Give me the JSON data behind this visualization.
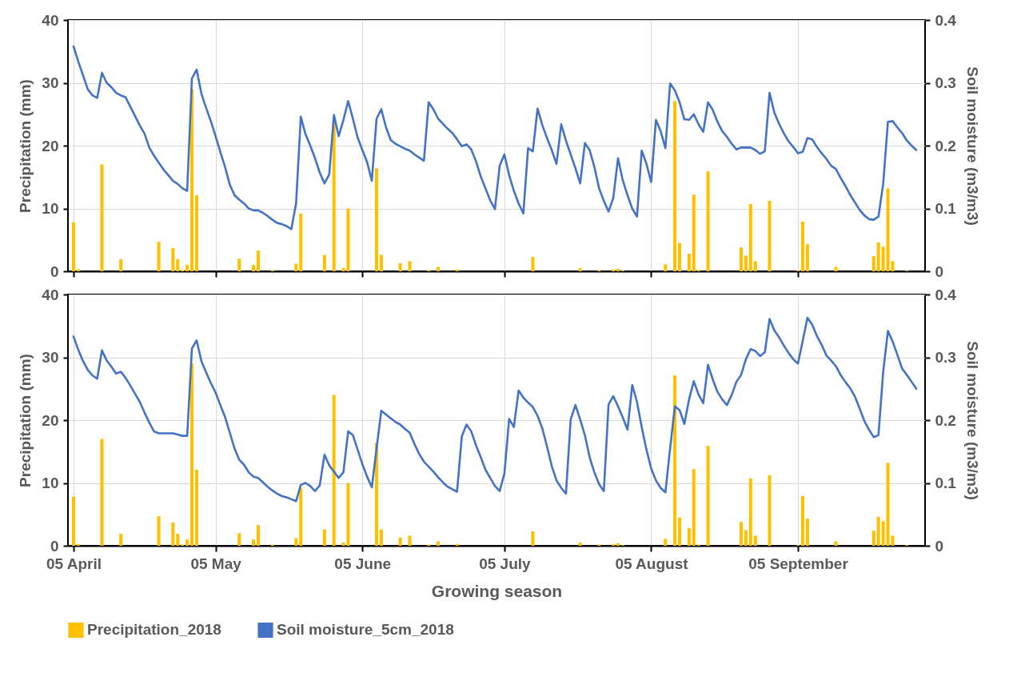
{
  "chart_data": [
    {
      "type": "bar",
      "ylabel": "Precipitation (mm)",
      "y2label": "Soil moisture (m3/m3)",
      "x": [
        "2018-04-05",
        "2018-04-06",
        "2018-04-07",
        "2018-04-08",
        "2018-04-09",
        "2018-04-10",
        "2018-04-11",
        "2018-04-12",
        "2018-04-13",
        "2018-04-14",
        "2018-04-15",
        "2018-04-16",
        "2018-04-17",
        "2018-04-18",
        "2018-04-19",
        "2018-04-20",
        "2018-04-21",
        "2018-04-22",
        "2018-04-23",
        "2018-04-24",
        "2018-04-25",
        "2018-04-26",
        "2018-04-27",
        "2018-04-28",
        "2018-04-29",
        "2018-04-30",
        "2018-05-01",
        "2018-05-02",
        "2018-05-03",
        "2018-05-04",
        "2018-05-05",
        "2018-05-06",
        "2018-05-07",
        "2018-05-08",
        "2018-05-09",
        "2018-05-10",
        "2018-05-11",
        "2018-05-12",
        "2018-05-13",
        "2018-05-14",
        "2018-05-15",
        "2018-05-16",
        "2018-05-17",
        "2018-05-18",
        "2018-05-19",
        "2018-05-20",
        "2018-05-21",
        "2018-05-22",
        "2018-05-23",
        "2018-05-24",
        "2018-05-25",
        "2018-05-26",
        "2018-05-27",
        "2018-05-28",
        "2018-05-29",
        "2018-05-30",
        "2018-05-31",
        "2018-06-01",
        "2018-06-02",
        "2018-06-03",
        "2018-06-04",
        "2018-06-05",
        "2018-06-06",
        "2018-06-07",
        "2018-06-08",
        "2018-06-09",
        "2018-06-10",
        "2018-06-11",
        "2018-06-12",
        "2018-06-13",
        "2018-06-14",
        "2018-06-15",
        "2018-06-16",
        "2018-06-17",
        "2018-06-18",
        "2018-06-19",
        "2018-06-20",
        "2018-06-21",
        "2018-06-22",
        "2018-06-23",
        "2018-06-24",
        "2018-06-25",
        "2018-06-26",
        "2018-06-27",
        "2018-06-28",
        "2018-06-29",
        "2018-06-30",
        "2018-07-01",
        "2018-07-02",
        "2018-07-03",
        "2018-07-04",
        "2018-07-05",
        "2018-07-06",
        "2018-07-07",
        "2018-07-08",
        "2018-07-09",
        "2018-07-10",
        "2018-07-11",
        "2018-07-12",
        "2018-07-13",
        "2018-07-14",
        "2018-07-15",
        "2018-07-16",
        "2018-07-17",
        "2018-07-18",
        "2018-07-19",
        "2018-07-20",
        "2018-07-21",
        "2018-07-22",
        "2018-07-23",
        "2018-07-24",
        "2018-07-25",
        "2018-07-26",
        "2018-07-27",
        "2018-07-28",
        "2018-07-29",
        "2018-07-30",
        "2018-07-31",
        "2018-08-01",
        "2018-08-02",
        "2018-08-03",
        "2018-08-04",
        "2018-08-05",
        "2018-08-06",
        "2018-08-07",
        "2018-08-08",
        "2018-08-09",
        "2018-08-10",
        "2018-08-11",
        "2018-08-12",
        "2018-08-13",
        "2018-08-14",
        "2018-08-15",
        "2018-08-16",
        "2018-08-17",
        "2018-08-18",
        "2018-08-19",
        "2018-08-20",
        "2018-08-21",
        "2018-08-22",
        "2018-08-23",
        "2018-08-24",
        "2018-08-25",
        "2018-08-26",
        "2018-08-27",
        "2018-08-28",
        "2018-08-29",
        "2018-08-30",
        "2018-08-31",
        "2018-09-01",
        "2018-09-02",
        "2018-09-03",
        "2018-09-04",
        "2018-09-05",
        "2018-09-06",
        "2018-09-07",
        "2018-09-08",
        "2018-09-09",
        "2018-09-10",
        "2018-09-11",
        "2018-09-12",
        "2018-09-13",
        "2018-09-14",
        "2018-09-15",
        "2018-09-16",
        "2018-09-17",
        "2018-09-18",
        "2018-09-19",
        "2018-09-20",
        "2018-09-21",
        "2018-09-22",
        "2018-09-23",
        "2018-09-24",
        "2018-09-25",
        "2018-09-26",
        "2018-09-27",
        "2018-09-28",
        "2018-09-29",
        "2018-09-30"
      ],
      "series": [
        {
          "color": "#ffc000",
          "x": [
            "2018-04-05",
            "2018-04-06",
            "2018-04-11",
            "2018-04-15",
            "2018-04-23",
            "2018-04-26",
            "2018-04-27",
            "2018-04-28",
            "2018-04-29",
            "2018-04-30",
            "2018-05-01",
            "2018-05-10",
            "2018-05-13",
            "2018-05-14",
            "2018-05-17",
            "2018-05-22",
            "2018-05-23",
            "2018-05-28",
            "2018-05-30",
            "2018-06-01",
            "2018-06-02",
            "2018-06-08",
            "2018-06-09",
            "2018-06-13",
            "2018-06-15",
            "2018-06-19",
            "2018-06-21",
            "2018-06-25",
            "2018-07-11",
            "2018-07-21",
            "2018-07-25",
            "2018-07-28",
            "2018-07-29",
            "2018-07-30",
            "2018-08-08",
            "2018-08-10",
            "2018-08-11",
            "2018-08-13",
            "2018-08-14",
            "2018-08-15",
            "2018-08-17",
            "2018-08-24",
            "2018-08-25",
            "2018-08-26",
            "2018-08-27",
            "2018-08-30",
            "2018-09-05",
            "2018-09-06",
            "2018-09-07",
            "2018-09-13",
            "2018-09-21",
            "2018-09-22",
            "2018-09-23",
            "2018-09-24",
            "2018-09-25",
            "2018-09-28"
          ],
          "values": [
            7.8,
            0.3,
            17.0,
            1.9,
            4.7,
            3.7,
            1.9,
            0.2,
            1.0,
            29.0,
            12.1,
            2.0,
            1.0,
            3.3,
            0.2,
            1.2,
            9.2,
            2.6,
            24.0,
            0.5,
            10.0,
            16.4,
            2.6,
            1.3,
            1.6,
            0.2,
            0.7,
            0.3,
            2.3,
            0.5,
            0.2,
            0.3,
            0.4,
            0.1,
            1.1,
            27.1,
            4.5,
            2.8,
            12.2,
            0.2,
            15.9,
            3.8,
            2.5,
            10.7,
            1.6,
            11.2,
            0.1,
            7.9,
            4.3,
            0.7,
            2.4,
            4.6,
            3.9,
            13.2,
            1.6,
            0.1
          ]
        },
        {
          "type": "line",
          "color": "#4472c4",
          "axis": "y2",
          "values": [
            0.358,
            0.334,
            0.312,
            0.29,
            0.28,
            0.276,
            0.316,
            0.3,
            0.293,
            0.284,
            0.28,
            0.277,
            0.262,
            0.247,
            0.232,
            0.219,
            0.197,
            0.184,
            0.173,
            0.162,
            0.153,
            0.144,
            0.139,
            0.132,
            0.128,
            0.307,
            0.321,
            0.283,
            0.26,
            0.239,
            0.215,
            0.19,
            0.166,
            0.138,
            0.121,
            0.114,
            0.108,
            0.1,
            0.097,
            0.097,
            0.093,
            0.088,
            0.082,
            0.077,
            0.075,
            0.072,
            0.067,
            0.108,
            0.246,
            0.218,
            0.2,
            0.18,
            0.157,
            0.14,
            0.154,
            0.249,
            0.215,
            0.241,
            0.271,
            0.243,
            0.213,
            0.193,
            0.174,
            0.144,
            0.243,
            0.258,
            0.229,
            0.209,
            0.203,
            0.199,
            0.195,
            0.192,
            0.186,
            0.181,
            0.176,
            0.269,
            0.258,
            0.243,
            0.235,
            0.227,
            0.22,
            0.21,
            0.199,
            0.202,
            0.194,
            0.175,
            0.151,
            0.132,
            0.113,
            0.099,
            0.168,
            0.186,
            0.153,
            0.128,
            0.108,
            0.092,
            0.196,
            0.191,
            0.259,
            0.233,
            0.212,
            0.193,
            0.171,
            0.234,
            0.208,
            0.186,
            0.164,
            0.14,
            0.204,
            0.193,
            0.166,
            0.132,
            0.112,
            0.095,
            0.117,
            0.18,
            0.145,
            0.121,
            0.1,
            0.087,
            0.192,
            0.171,
            0.142,
            0.241,
            0.223,
            0.196,
            0.299,
            0.288,
            0.269,
            0.242,
            0.241,
            0.25,
            0.234,
            0.222,
            0.269,
            0.257,
            0.238,
            0.223,
            0.214,
            0.203,
            0.194,
            0.197,
            0.197,
            0.197,
            0.193,
            0.187,
            0.191,
            0.284,
            0.253,
            0.235,
            0.22,
            0.207,
            0.198,
            0.188,
            0.19,
            0.212,
            0.21,
            0.198,
            0.188,
            0.179,
            0.168,
            0.163,
            0.149,
            0.136,
            0.122,
            0.11,
            0.098,
            0.089,
            0.083,
            0.082,
            0.087,
            0.139,
            0.238,
            0.239,
            0.229,
            0.22,
            0.208,
            0.2,
            0.193
          ]
        }
      ],
      "xlim": [
        "2018-04-04T16:00",
        "2018-10-01"
      ],
      "xticks": [
        {
          "value": "2018-04-05",
          "label": null
        },
        {
          "value": "2018-05-05",
          "label": null
        },
        {
          "value": "2018-06-05",
          "label": null
        },
        {
          "value": "2018-07-05",
          "label": null
        },
        {
          "value": "2018-08-05",
          "label": null
        },
        {
          "value": "2018-09-05",
          "label": null
        }
      ],
      "ylim": [
        0,
        40
      ],
      "yticks": [
        0,
        10,
        20,
        30,
        40
      ],
      "y2lim": [
        0,
        0.4
      ],
      "y2ticks": [
        0,
        0.1,
        0.2,
        0.3,
        0.4
      ],
      "grid": true,
      "tick_labels": "y"
    },
    {
      "type": "bar",
      "xlabel": "Growing season",
      "ylabel": "Precipitation (mm)",
      "y2label": "Soil moisture (m3/m3)",
      "x": [
        "2018-04-05",
        "2018-04-06",
        "2018-04-07",
        "2018-04-08",
        "2018-04-09",
        "2018-04-10",
        "2018-04-11",
        "2018-04-12",
        "2018-04-13",
        "2018-04-14",
        "2018-04-15",
        "2018-04-16",
        "2018-04-17",
        "2018-04-18",
        "2018-04-19",
        "2018-04-20",
        "2018-04-21",
        "2018-04-22",
        "2018-04-23",
        "2018-04-24",
        "2018-04-25",
        "2018-04-26",
        "2018-04-27",
        "2018-04-28",
        "2018-04-29",
        "2018-04-30",
        "2018-05-01",
        "2018-05-02",
        "2018-05-03",
        "2018-05-04",
        "2018-05-05",
        "2018-05-06",
        "2018-05-07",
        "2018-05-08",
        "2018-05-09",
        "2018-05-10",
        "2018-05-11",
        "2018-05-12",
        "2018-05-13",
        "2018-05-14",
        "2018-05-15",
        "2018-05-16",
        "2018-05-17",
        "2018-05-18",
        "2018-05-19",
        "2018-05-20",
        "2018-05-21",
        "2018-05-22",
        "2018-05-23",
        "2018-05-24",
        "2018-05-25",
        "2018-05-26",
        "2018-05-27",
        "2018-05-28",
        "2018-05-29",
        "2018-05-30",
        "2018-05-31",
        "2018-06-01",
        "2018-06-02",
        "2018-06-03",
        "2018-06-04",
        "2018-06-05",
        "2018-06-06",
        "2018-06-07",
        "2018-06-08",
        "2018-06-09",
        "2018-06-10",
        "2018-06-11",
        "2018-06-12",
        "2018-06-13",
        "2018-06-14",
        "2018-06-15",
        "2018-06-16",
        "2018-06-17",
        "2018-06-18",
        "2018-06-19",
        "2018-06-20",
        "2018-06-21",
        "2018-06-22",
        "2018-06-23",
        "2018-06-24",
        "2018-06-25",
        "2018-06-26",
        "2018-06-27",
        "2018-06-28",
        "2018-06-29",
        "2018-06-30",
        "2018-07-01",
        "2018-07-02",
        "2018-07-03",
        "2018-07-04",
        "2018-07-05",
        "2018-07-06",
        "2018-07-07",
        "2018-07-08",
        "2018-07-09",
        "2018-07-10",
        "2018-07-11",
        "2018-07-12",
        "2018-07-13",
        "2018-07-14",
        "2018-07-15",
        "2018-07-16",
        "2018-07-17",
        "2018-07-18",
        "2018-07-19",
        "2018-07-20",
        "2018-07-21",
        "2018-07-22",
        "2018-07-23",
        "2018-07-24",
        "2018-07-25",
        "2018-07-26",
        "2018-07-27",
        "2018-07-28",
        "2018-07-29",
        "2018-07-30",
        "2018-07-31",
        "2018-08-01",
        "2018-08-02",
        "2018-08-03",
        "2018-08-04",
        "2018-08-05",
        "2018-08-06",
        "2018-08-07",
        "2018-08-08",
        "2018-08-09",
        "2018-08-10",
        "2018-08-11",
        "2018-08-12",
        "2018-08-13",
        "2018-08-14",
        "2018-08-15",
        "2018-08-16",
        "2018-08-17",
        "2018-08-18",
        "2018-08-19",
        "2018-08-20",
        "2018-08-21",
        "2018-08-22",
        "2018-08-23",
        "2018-08-24",
        "2018-08-25",
        "2018-08-26",
        "2018-08-27",
        "2018-08-28",
        "2018-08-29",
        "2018-08-30",
        "2018-08-31",
        "2018-09-01",
        "2018-09-02",
        "2018-09-03",
        "2018-09-04",
        "2018-09-05",
        "2018-09-06",
        "2018-09-07",
        "2018-09-08",
        "2018-09-09",
        "2018-09-10",
        "2018-09-11",
        "2018-09-12",
        "2018-09-13",
        "2018-09-14",
        "2018-09-15",
        "2018-09-16",
        "2018-09-17",
        "2018-09-18",
        "2018-09-19",
        "2018-09-20",
        "2018-09-21",
        "2018-09-22",
        "2018-09-23",
        "2018-09-24",
        "2018-09-25",
        "2018-09-26",
        "2018-09-27",
        "2018-09-28",
        "2018-09-29",
        "2018-09-30"
      ],
      "series": [
        {
          "name": "Precipitation_2018",
          "color": "#ffc000",
          "x": [
            "2018-04-05",
            "2018-04-06",
            "2018-04-11",
            "2018-04-15",
            "2018-04-23",
            "2018-04-26",
            "2018-04-27",
            "2018-04-28",
            "2018-04-29",
            "2018-04-30",
            "2018-05-01",
            "2018-05-10",
            "2018-05-13",
            "2018-05-14",
            "2018-05-17",
            "2018-05-22",
            "2018-05-23",
            "2018-05-28",
            "2018-05-30",
            "2018-06-01",
            "2018-06-02",
            "2018-06-08",
            "2018-06-09",
            "2018-06-13",
            "2018-06-15",
            "2018-06-19",
            "2018-06-21",
            "2018-06-25",
            "2018-07-11",
            "2018-07-21",
            "2018-07-25",
            "2018-07-28",
            "2018-07-29",
            "2018-07-30",
            "2018-08-08",
            "2018-08-10",
            "2018-08-11",
            "2018-08-13",
            "2018-08-14",
            "2018-08-15",
            "2018-08-17",
            "2018-08-24",
            "2018-08-25",
            "2018-08-26",
            "2018-08-27",
            "2018-08-30",
            "2018-09-05",
            "2018-09-06",
            "2018-09-07",
            "2018-09-13",
            "2018-09-21",
            "2018-09-22",
            "2018-09-23",
            "2018-09-24",
            "2018-09-25",
            "2018-09-28"
          ],
          "values": [
            7.8,
            0.3,
            17.0,
            1.9,
            4.7,
            3.7,
            1.9,
            0.2,
            1.0,
            29.0,
            12.1,
            2.0,
            1.0,
            3.3,
            0.2,
            1.2,
            9.2,
            2.6,
            24.0,
            0.5,
            10.0,
            16.4,
            2.6,
            1.3,
            1.6,
            0.2,
            0.7,
            0.3,
            2.3,
            0.5,
            0.2,
            0.3,
            0.4,
            0.1,
            1.1,
            27.1,
            4.5,
            2.8,
            12.2,
            0.2,
            15.9,
            3.8,
            2.5,
            10.7,
            1.6,
            11.2,
            0.1,
            7.9,
            4.3,
            0.7,
            2.4,
            4.6,
            3.9,
            13.2,
            1.6,
            0.1
          ]
        },
        {
          "name": "Soil moisture_5cm_2018",
          "type": "line",
          "color": "#4472c4",
          "axis": "y2",
          "values": [
            0.333,
            0.312,
            0.294,
            0.28,
            0.271,
            0.266,
            0.311,
            0.295,
            0.285,
            0.274,
            0.277,
            0.267,
            0.255,
            0.242,
            0.229,
            0.212,
            0.196,
            0.182,
            0.179,
            0.179,
            0.179,
            0.179,
            0.177,
            0.175,
            0.175,
            0.314,
            0.327,
            0.294,
            0.276,
            0.259,
            0.244,
            0.224,
            0.205,
            0.18,
            0.155,
            0.137,
            0.129,
            0.117,
            0.11,
            0.108,
            0.101,
            0.094,
            0.088,
            0.083,
            0.079,
            0.077,
            0.074,
            0.071,
            0.097,
            0.1,
            0.095,
            0.087,
            0.096,
            0.145,
            0.128,
            0.118,
            0.108,
            0.117,
            0.182,
            0.176,
            0.153,
            0.13,
            0.11,
            0.093,
            0.155,
            0.215,
            0.209,
            0.203,
            0.197,
            0.193,
            0.186,
            0.18,
            0.162,
            0.146,
            0.134,
            0.126,
            0.118,
            0.109,
            0.101,
            0.094,
            0.09,
            0.086,
            0.174,
            0.193,
            0.182,
            0.16,
            0.141,
            0.121,
            0.108,
            0.095,
            0.087,
            0.115,
            0.202,
            0.189,
            0.247,
            0.236,
            0.228,
            0.221,
            0.207,
            0.187,
            0.158,
            0.127,
            0.104,
            0.092,
            0.083,
            0.201,
            0.224,
            0.201,
            0.176,
            0.141,
            0.117,
            0.098,
            0.087,
            0.225,
            0.238,
            0.222,
            0.204,
            0.185,
            0.256,
            0.229,
            0.189,
            0.153,
            0.123,
            0.104,
            0.092,
            0.085,
            0.155,
            0.222,
            0.216,
            0.194,
            0.233,
            0.262,
            0.241,
            0.227,
            0.288,
            0.265,
            0.245,
            0.233,
            0.224,
            0.24,
            0.261,
            0.272,
            0.297,
            0.313,
            0.31,
            0.302,
            0.308,
            0.361,
            0.343,
            0.332,
            0.319,
            0.307,
            0.297,
            0.29,
            0.326,
            0.363,
            0.352,
            0.334,
            0.32,
            0.303,
            0.295,
            0.286,
            0.272,
            0.261,
            0.251,
            0.238,
            0.219,
            0.199,
            0.185,
            0.173,
            0.176,
            0.277,
            0.342,
            0.325,
            0.304,
            0.282,
            0.272,
            0.261,
            0.25
          ]
        }
      ],
      "xlim": [
        "2018-04-04T16:00",
        "2018-10-01"
      ],
      "xticks": [
        {
          "value": "2018-04-05",
          "label": "05 April"
        },
        {
          "value": "2018-05-05",
          "label": "05 May"
        },
        {
          "value": "2018-06-05",
          "label": "05 June"
        },
        {
          "value": "2018-07-05",
          "label": "05 July"
        },
        {
          "value": "2018-08-05",
          "label": "05 August"
        },
        {
          "value": "2018-09-05",
          "label": "05 September"
        }
      ],
      "ylim": [
        0,
        40
      ],
      "yticks": [
        0,
        10,
        20,
        30,
        40
      ],
      "y2lim": [
        0,
        0.4
      ],
      "y2ticks": [
        0,
        0.1,
        0.2,
        0.3,
        0.4
      ],
      "grid": true,
      "legend": "bottom"
    }
  ]
}
